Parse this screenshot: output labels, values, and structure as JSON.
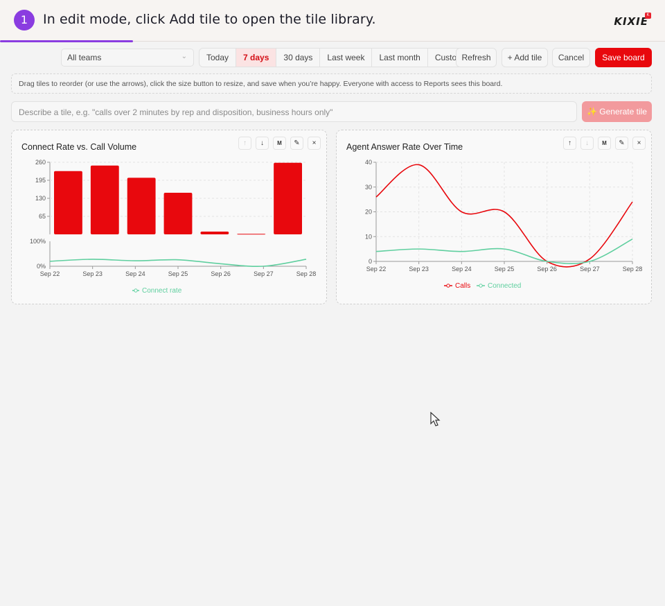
{
  "banner": {
    "step": "1",
    "instruction": "In edit mode, click Add tile to open the tile library.",
    "logo": "KIXIE",
    "logo_badge": "K",
    "progress_fraction": 0.2
  },
  "toolbar": {
    "team_select": "All teams",
    "ranges": [
      "Today",
      "7 days",
      "30 days",
      "Last week",
      "Last month",
      "Custom"
    ],
    "active_range": "7 days",
    "refresh": "Refresh",
    "add_tile": "+ Add tile",
    "cancel": "Cancel",
    "save": "Save board"
  },
  "help_text": "Drag tiles to reorder (or use the arrows), click the size button to resize, and save when you’re happy. Everyone with access to Reports sees this board.",
  "prompt": {
    "placeholder": "Describe a tile, e.g. \"calls over 2 minutes by rep and disposition, business hours only\"",
    "generate": "✨ Generate tile"
  },
  "tiles": [
    {
      "title": "Connect Rate vs. Call Volume",
      "size_label": "M",
      "legend": "Connect rate"
    },
    {
      "title": "Agent Answer Rate Over Time",
      "size_label": "M",
      "legend": [
        "Calls",
        "Connected"
      ]
    }
  ],
  "colors": {
    "accent": "#e8080d",
    "green": "#5fcf9f",
    "purple": "#8a3ce0"
  },
  "chart_data": [
    {
      "type": "bar",
      "title": "Connect Rate vs. Call Volume",
      "categories": [
        "Sep 22",
        "Sep 23",
        "Sep 24",
        "Sep 25",
        "Sep 26",
        "Sep 27",
        "Sep 28"
      ],
      "series": [
        {
          "values": [
            228,
            248,
            204,
            150,
            10,
            2,
            258
          ]
        },
        {
          "name": "Connect rate",
          "type": "line",
          "values": [
            20,
            28,
            22,
            26,
            10,
            0,
            28
          ],
          "unit": "%"
        }
      ],
      "y_ticks": [
        "65",
        "130",
        "195",
        "260"
      ],
      "ylim": [
        0,
        260
      ],
      "y2_ticks": [
        "0%",
        "100%"
      ],
      "y2lim": [
        0,
        100
      ]
    },
    {
      "type": "line",
      "title": "Agent Answer Rate Over Time",
      "categories": [
        "Sep 22",
        "Sep 23",
        "Sep 24",
        "Sep 25",
        "Sep 26",
        "Sep 27",
        "Sep 28"
      ],
      "series": [
        {
          "name": "Calls",
          "values": [
            26,
            39,
            20,
            20,
            0,
            1,
            24
          ]
        },
        {
          "name": "Connected",
          "values": [
            4,
            5,
            4,
            5,
            0,
            0,
            9
          ]
        }
      ],
      "y_ticks": [
        "0",
        "10",
        "20",
        "30",
        "40"
      ],
      "ylim": [
        0,
        40
      ],
      "grid": true
    }
  ]
}
